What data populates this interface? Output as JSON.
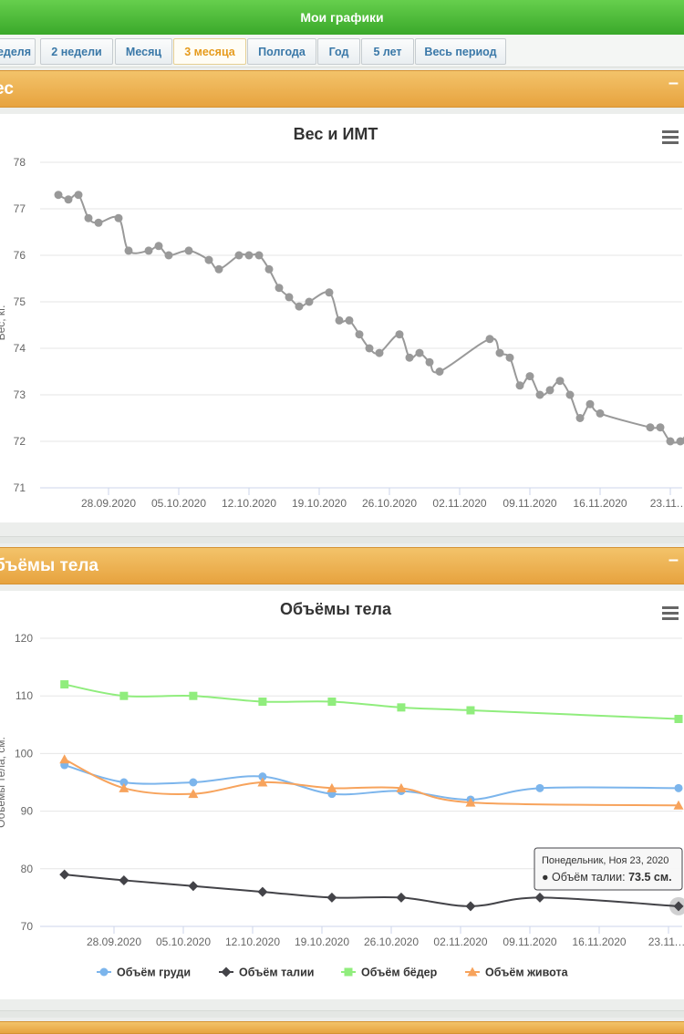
{
  "header": {
    "title": "Мои графики"
  },
  "tabs": [
    {
      "label": "еделя"
    },
    {
      "label": "2 недели"
    },
    {
      "label": "Месяц"
    },
    {
      "label": "3 месяца",
      "active": true
    },
    {
      "label": "Полгода"
    },
    {
      "label": "Год"
    },
    {
      "label": "5 лет"
    },
    {
      "label": "Весь период"
    }
  ],
  "colors": {
    "header_green": "#4dbb37",
    "section_orange": "#ecac4c",
    "active_tab": "#e69b1d"
  },
  "sections": {
    "weight": {
      "title": "ес",
      "collapse": "–"
    },
    "volumes": {
      "title": "бъёмы тела",
      "collapse": "–"
    }
  },
  "chart_data": [
    {
      "type": "line",
      "title": "Вес и ИМТ",
      "ylabel": "Вес, кг.",
      "ylim": [
        71,
        78
      ],
      "yticks": [
        "71",
        "72",
        "73",
        "74",
        "75",
        "76",
        "77",
        "78"
      ],
      "xtick_labels": [
        "28.09.2020",
        "05.10.2020",
        "12.10.2020",
        "19.10.2020",
        "26.10.2020",
        "02.11.2020",
        "09.11.2020",
        "16.11.2020",
        "23.11.…"
      ],
      "grid": true,
      "menu_icon": "hamburger-menu-icon",
      "series": [
        {
          "color": "#999999",
          "points": [
            [
              "2020-09-23",
              77.3
            ],
            [
              "2020-09-24",
              77.2
            ],
            [
              "2020-09-25",
              77.3
            ],
            [
              "2020-09-26",
              76.8
            ],
            [
              "2020-09-27",
              76.7
            ],
            [
              "2020-09-29",
              76.8
            ],
            [
              "2020-09-30",
              76.1
            ],
            [
              "2020-10-02",
              76.1
            ],
            [
              "2020-10-03",
              76.2
            ],
            [
              "2020-10-04",
              76.0
            ],
            [
              "2020-10-06",
              76.1
            ],
            [
              "2020-10-08",
              75.9
            ],
            [
              "2020-10-09",
              75.7
            ],
            [
              "2020-10-11",
              76.0
            ],
            [
              "2020-10-12",
              76.0
            ],
            [
              "2020-10-13",
              76.0
            ],
            [
              "2020-10-14",
              75.7
            ],
            [
              "2020-10-15",
              75.3
            ],
            [
              "2020-10-16",
              75.1
            ],
            [
              "2020-10-17",
              74.9
            ],
            [
              "2020-10-18",
              75.0
            ],
            [
              "2020-10-20",
              75.2
            ],
            [
              "2020-10-21",
              74.6
            ],
            [
              "2020-10-22",
              74.6
            ],
            [
              "2020-10-23",
              74.3
            ],
            [
              "2020-10-24",
              74.0
            ],
            [
              "2020-10-25",
              73.9
            ],
            [
              "2020-10-27",
              74.3
            ],
            [
              "2020-10-28",
              73.8
            ],
            [
              "2020-10-29",
              73.9
            ],
            [
              "2020-10-30",
              73.7
            ],
            [
              "2020-10-31",
              73.5
            ],
            [
              "2020-11-05",
              74.2
            ],
            [
              "2020-11-06",
              73.9
            ],
            [
              "2020-11-07",
              73.8
            ],
            [
              "2020-11-08",
              73.2
            ],
            [
              "2020-11-09",
              73.4
            ],
            [
              "2020-11-10",
              73.0
            ],
            [
              "2020-11-11",
              73.1
            ],
            [
              "2020-11-12",
              73.3
            ],
            [
              "2020-11-13",
              73.0
            ],
            [
              "2020-11-14",
              72.5
            ],
            [
              "2020-11-15",
              72.8
            ],
            [
              "2020-11-16",
              72.6
            ],
            [
              "2020-11-21",
              72.3
            ],
            [
              "2020-11-22",
              72.3
            ],
            [
              "2020-11-23",
              72.0
            ],
            [
              "2020-11-24",
              72.0
            ],
            [
              "2020-11-25",
              72.2
            ],
            [
              "2020-11-26",
              72.0
            ]
          ]
        }
      ]
    },
    {
      "type": "line",
      "title": "Объёмы тела",
      "ylabel": "Объемы тела, см.",
      "ylim": [
        70,
        120
      ],
      "yticks": [
        "70",
        "80",
        "90",
        "100",
        "110",
        "120"
      ],
      "xtick_labels": [
        "28.09.2020",
        "05.10.2020",
        "12.10.2020",
        "19.10.2020",
        "26.10.2020",
        "02.11.2020",
        "09.11.2020",
        "16.11.2020",
        "23.11.…"
      ],
      "grid": true,
      "menu_icon": "hamburger-menu-icon",
      "legend_placement": "bottom",
      "series": [
        {
          "name": "Объём груди",
          "color": "#7cb5ec",
          "marker": "circle",
          "points": [
            [
              "2020-09-23",
              98
            ],
            [
              "2020-09-29",
              95
            ],
            [
              "2020-10-06",
              95
            ],
            [
              "2020-10-13",
              96
            ],
            [
              "2020-10-20",
              93
            ],
            [
              "2020-10-27",
              93.5
            ],
            [
              "2020-11-03",
              92
            ],
            [
              "2020-11-10",
              94
            ],
            [
              "2020-11-24",
              94
            ]
          ]
        },
        {
          "name": "Объём талии",
          "color": "#434348",
          "marker": "diamond",
          "points": [
            [
              "2020-09-23",
              79
            ],
            [
              "2020-09-29",
              78
            ],
            [
              "2020-10-06",
              77
            ],
            [
              "2020-10-13",
              76
            ],
            [
              "2020-10-20",
              75
            ],
            [
              "2020-10-27",
              75
            ],
            [
              "2020-11-03",
              73.5
            ],
            [
              "2020-11-10",
              75
            ],
            [
              "2020-11-24",
              73.5
            ]
          ]
        },
        {
          "name": "Объём бёдер",
          "color": "#90ed7d",
          "marker": "square",
          "points": [
            [
              "2020-09-23",
              112
            ],
            [
              "2020-09-29",
              110
            ],
            [
              "2020-10-06",
              110
            ],
            [
              "2020-10-13",
              109
            ],
            [
              "2020-10-20",
              109
            ],
            [
              "2020-10-27",
              108
            ],
            [
              "2020-11-03",
              107.5
            ],
            [
              "2020-11-24",
              106
            ]
          ]
        },
        {
          "name": "Объём живота",
          "color": "#f7a35c",
          "marker": "triangle",
          "points": [
            [
              "2020-09-23",
              99
            ],
            [
              "2020-09-29",
              94
            ],
            [
              "2020-10-06",
              93
            ],
            [
              "2020-10-13",
              95
            ],
            [
              "2020-10-20",
              94
            ],
            [
              "2020-10-27",
              94
            ],
            [
              "2020-11-03",
              91.5
            ],
            [
              "2020-11-24",
              91
            ]
          ]
        }
      ],
      "tooltip": {
        "date": "Понедельник, Ноя 23, 2020",
        "series_label": "Объём талии: ",
        "value": "73.5 см."
      }
    }
  ]
}
